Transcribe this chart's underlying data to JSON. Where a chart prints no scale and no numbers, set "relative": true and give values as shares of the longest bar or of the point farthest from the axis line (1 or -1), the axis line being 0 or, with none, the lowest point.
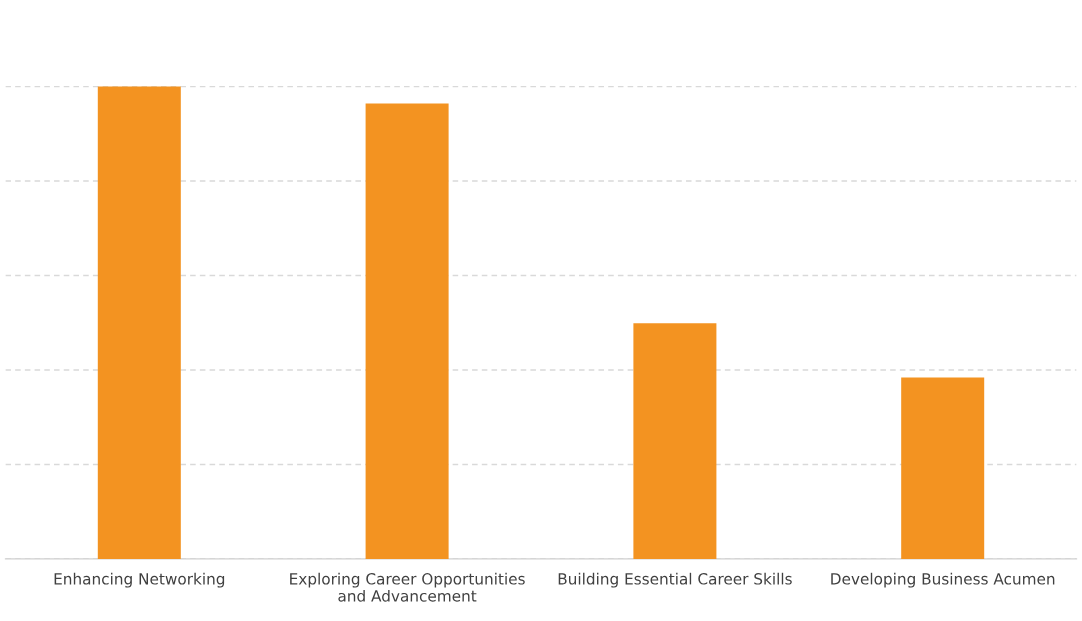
{
  "chart_data": {
    "type": "bar",
    "relative": true,
    "categories": [
      "Enhancing Networking",
      "Exploring Career Opportunities\nand Advancement",
      "Building Essential Career Skills",
      "Developing Business Acumen"
    ],
    "values": [
      1,
      0.964,
      0.499,
      0.384
    ],
    "color": "#f39321",
    "grid": "y"
  }
}
